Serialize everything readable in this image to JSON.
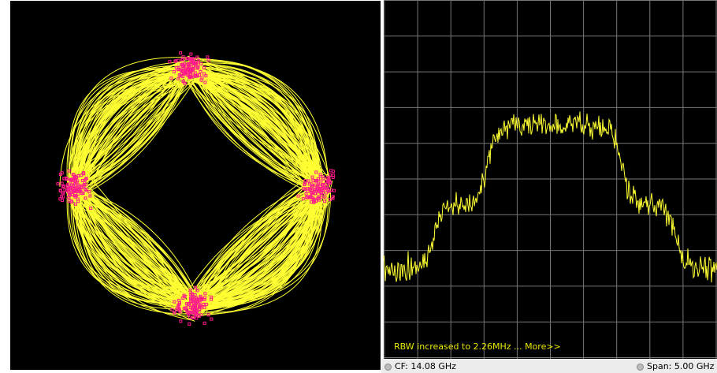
{
  "spectrum": {
    "message": "RBW increased to 2.26MHz ... More>>",
    "center_frequency": "CF: 14.08 GHz",
    "span": "Span: 5.00 GHz"
  }
}
